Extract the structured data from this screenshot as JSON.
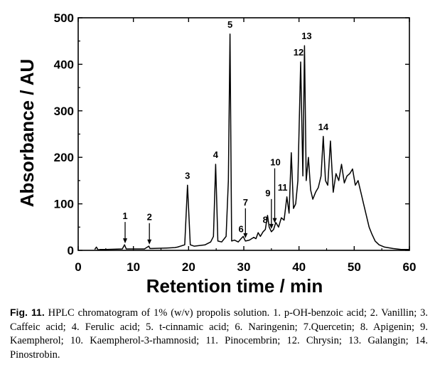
{
  "chart_data": {
    "type": "line",
    "title": "",
    "xlabel": "Retention time / min",
    "ylabel": "Absorbance / AU",
    "xlim": [
      0,
      60
    ],
    "ylim": [
      0,
      500
    ],
    "x_ticks": [
      "0",
      "10",
      "20",
      "30",
      "40",
      "50",
      "60"
    ],
    "y_ticks": [
      "0",
      "100",
      "200",
      "300",
      "400",
      "500"
    ],
    "series": [
      {
        "name": "1% (w/v) propolis solution",
        "x": [
          3.0,
          3.3,
          3.6,
          4.0,
          5.0,
          8.0,
          8.4,
          8.7,
          9.0,
          12.0,
          12.8,
          13.0,
          13.3,
          16.0,
          17.5,
          18.0,
          19.3,
          19.8,
          20.3,
          21.0,
          23.0,
          24.0,
          24.5,
          24.9,
          25.3,
          26.0,
          26.8,
          27.2,
          27.5,
          27.8,
          28.3,
          29.0,
          29.5,
          29.9,
          30.3,
          31.0,
          31.8,
          32.2,
          32.6,
          33.0,
          33.5,
          33.9,
          34.3,
          34.6,
          35.0,
          35.4,
          35.8,
          36.3,
          36.8,
          37.3,
          37.8,
          38.2,
          38.6,
          39.0,
          39.4,
          39.8,
          40.3,
          40.7,
          41.0,
          41.3,
          41.7,
          42.1,
          42.5,
          43.0,
          43.5,
          44.0,
          44.4,
          44.8,
          45.2,
          45.7,
          46.2,
          46.7,
          47.2,
          47.7,
          48.2,
          48.7,
          49.2,
          49.7,
          50.2,
          50.7,
          51.2,
          51.7,
          52.2,
          52.7,
          53.2,
          53.8,
          54.5,
          55.5,
          57.0,
          58.5,
          60.0
        ],
        "values": [
          2,
          7,
          1,
          2,
          2,
          3,
          12,
          3,
          3,
          3,
          9,
          4,
          4,
          5,
          6,
          7,
          12,
          140,
          12,
          9,
          12,
          18,
          30,
          185,
          20,
          18,
          30,
          150,
          465,
          20,
          22,
          18,
          25,
          30,
          20,
          22,
          28,
          25,
          38,
          30,
          40,
          45,
          75,
          50,
          40,
          45,
          60,
          50,
          70,
          65,
          115,
          80,
          210,
          90,
          100,
          150,
          405,
          160,
          440,
          150,
          200,
          130,
          110,
          125,
          135,
          160,
          245,
          150,
          140,
          235,
          125,
          165,
          150,
          185,
          145,
          160,
          165,
          175,
          140,
          150,
          125,
          100,
          75,
          50,
          35,
          20,
          12,
          7,
          4,
          2,
          2
        ]
      }
    ],
    "peaks": [
      {
        "label": "1",
        "x": 8.5
      },
      {
        "label": "2",
        "x": 12.9
      },
      {
        "label": "3",
        "x": 19.8
      },
      {
        "label": "4",
        "x": 24.9
      },
      {
        "label": "5",
        "x": 27.5
      },
      {
        "label": "6",
        "x": 29.5
      },
      {
        "label": "7",
        "x": 30.3
      },
      {
        "label": "8",
        "x": 33.9
      },
      {
        "label": "9",
        "x": 35.0
      },
      {
        "label": "10",
        "x": 35.6
      },
      {
        "label": "11",
        "x": 37.8
      },
      {
        "label": "12",
        "x": 40.3
      },
      {
        "label": "13",
        "x": 41.0
      },
      {
        "label": "14",
        "x": 44.4
      }
    ]
  },
  "caption": {
    "fig_label": "Fig. 11.",
    "text": "HPLC chromatogram of 1% (w/v) propolis solution. 1. p-OH-benzoic acid; 2. Vanillin; 3. Caffeic acid; 4. Ferulic acid; 5. t-cinnamic acid; 6. Naringenin; 7.Quercetin; 8. Apigenin; 9. Kaempherol; 10. Kaempherol-3-rhamnosid; 11. Pinocembrin; 12. Chrysin; 13. Galangin; 14. Pinostrobin."
  }
}
